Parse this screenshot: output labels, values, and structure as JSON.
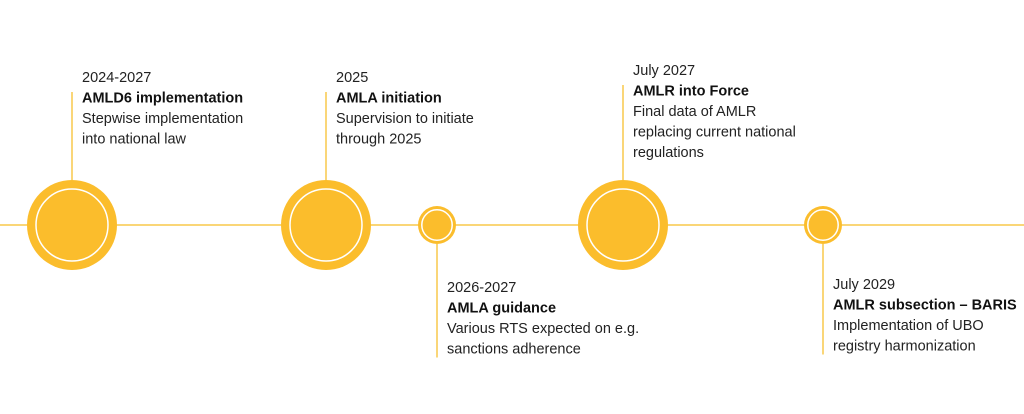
{
  "events": [
    {
      "date": "2024-2027",
      "title": "AMLD6 implementation",
      "description": [
        "Stepwise implementation",
        "into national law"
      ]
    },
    {
      "date": "2025",
      "title": "AMLA initiation",
      "description": [
        "Supervision to initiate",
        "through 2025"
      ]
    },
    {
      "date": "2026-2027",
      "title": "AMLA guidance",
      "description": [
        "Various RTS expected on e.g.",
        "sanctions adherence"
      ]
    },
    {
      "date": "July 2027",
      "title": "AMLR into Force",
      "description": [
        "Final data of AMLR",
        "replacing current national",
        "regulations"
      ]
    },
    {
      "date": "July 2029",
      "title": "AMLR subsection – BARIS",
      "description": [
        "Implementation of UBO",
        "registry harmonization"
      ]
    }
  ]
}
